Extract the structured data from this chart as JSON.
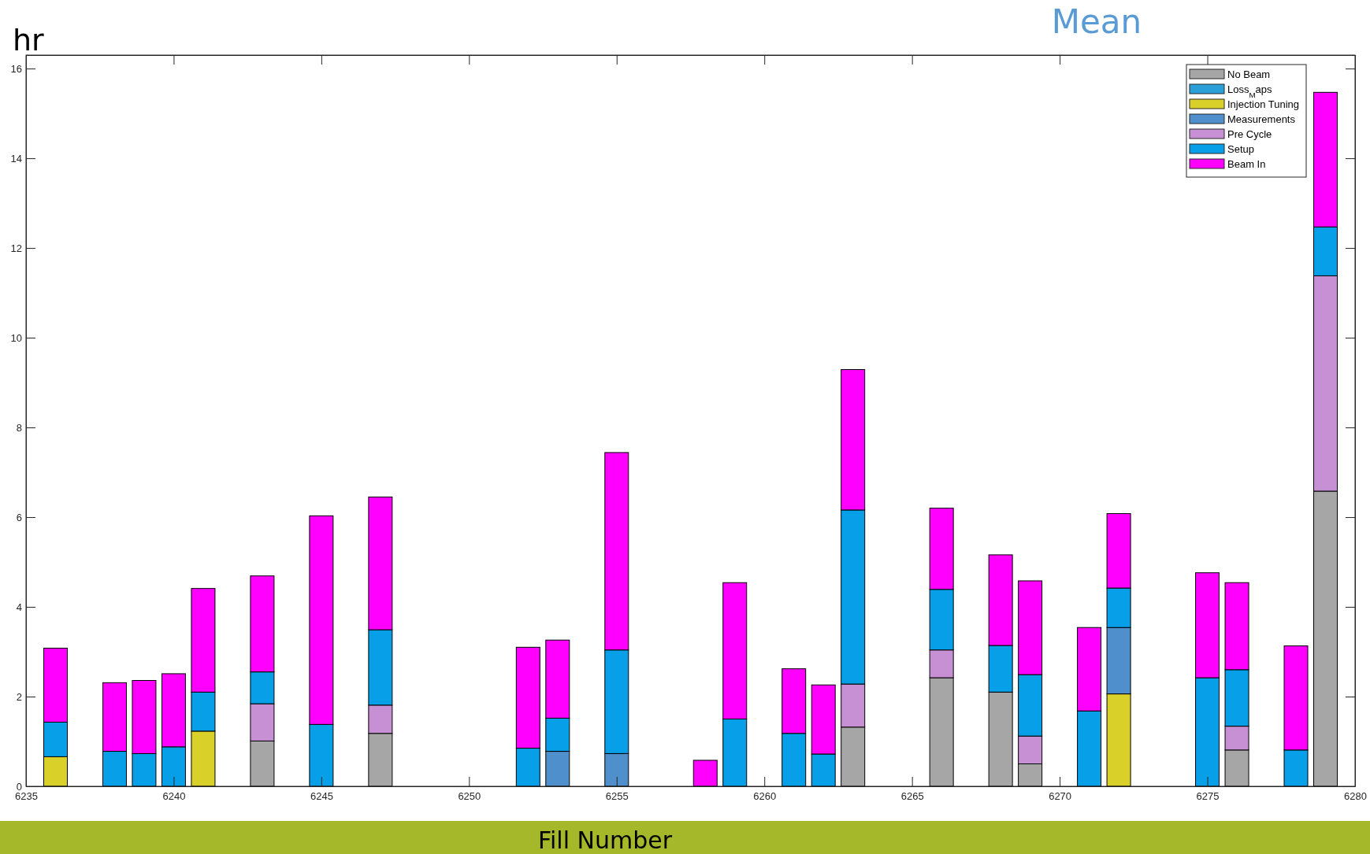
{
  "chart_data": {
    "type": "bar",
    "stacked": true,
    "title": "Mean",
    "xlabel": "Fill Number",
    "ylabel": "hr",
    "x": [
      6236,
      6238,
      6239,
      6240,
      6241,
      6243,
      6245,
      6247,
      6252,
      6253,
      6255,
      6258,
      6259,
      6261,
      6262,
      6263,
      6266,
      6268,
      6269,
      6271,
      6272,
      6275,
      6276,
      6278,
      6279
    ],
    "xlim": [
      6235,
      6280
    ],
    "xticks": [
      6235,
      6240,
      6245,
      6250,
      6255,
      6260,
      6265,
      6270,
      6275,
      6280
    ],
    "ylim": [
      0,
      16.3
    ],
    "yticks": [
      0,
      2,
      4,
      6,
      8,
      10,
      12,
      14,
      16
    ],
    "legend": "top right",
    "grid": false,
    "series": [
      {
        "name": "No Beam",
        "color": "#a6a6a6",
        "values": [
          null,
          null,
          null,
          null,
          null,
          1.01,
          null,
          1.18,
          null,
          null,
          null,
          null,
          null,
          null,
          null,
          1.32,
          2.42,
          2.1,
          0.5,
          null,
          null,
          null,
          0.81,
          null,
          6.58
        ]
      },
      {
        "name": "Loss$_{M}$aps",
        "color": "#2a9fd8",
        "values": [
          null,
          null,
          null,
          null,
          null,
          null,
          null,
          null,
          null,
          null,
          null,
          null,
          null,
          null,
          null,
          null,
          null,
          null,
          null,
          null,
          null,
          null,
          null,
          null,
          null
        ]
      },
      {
        "name": "Injection Tuning",
        "color": "#d9d12a",
        "values": [
          0.66,
          null,
          null,
          null,
          1.23,
          null,
          null,
          null,
          null,
          null,
          null,
          null,
          null,
          null,
          null,
          null,
          null,
          null,
          null,
          null,
          2.06,
          null,
          null,
          null,
          null
        ]
      },
      {
        "name": "Measurements",
        "color": "#4f8fcc",
        "values": [
          null,
          null,
          null,
          null,
          null,
          null,
          null,
          null,
          null,
          0.78,
          0.73,
          null,
          null,
          null,
          null,
          null,
          null,
          null,
          null,
          null,
          1.48,
          null,
          null,
          null,
          null
        ]
      },
      {
        "name": "Pre Cycle",
        "color": "#c78fd4",
        "values": [
          null,
          null,
          null,
          null,
          null,
          0.83,
          null,
          0.63,
          null,
          null,
          null,
          null,
          null,
          null,
          null,
          0.96,
          0.62,
          null,
          0.62,
          null,
          null,
          null,
          0.53,
          null,
          4.8
        ]
      },
      {
        "name": "Setup",
        "color": "#07a0e8",
        "values": [
          0.77,
          0.78,
          0.73,
          0.88,
          0.87,
          0.71,
          1.38,
          1.68,
          0.85,
          0.74,
          2.31,
          null,
          1.5,
          1.18,
          0.72,
          3.88,
          1.35,
          1.04,
          1.37,
          1.68,
          0.88,
          2.42,
          1.26,
          0.81,
          1.09
        ]
      },
      {
        "name": "Beam In",
        "color": "#ff00ff",
        "values": [
          1.65,
          1.53,
          1.63,
          1.63,
          2.31,
          2.14,
          4.65,
          2.96,
          2.25,
          1.74,
          4.4,
          0.58,
          3.04,
          1.44,
          1.54,
          3.13,
          1.81,
          2.02,
          2.09,
          1.86,
          1.66,
          2.34,
          1.94,
          2.32,
          3.0
        ]
      }
    ]
  }
}
